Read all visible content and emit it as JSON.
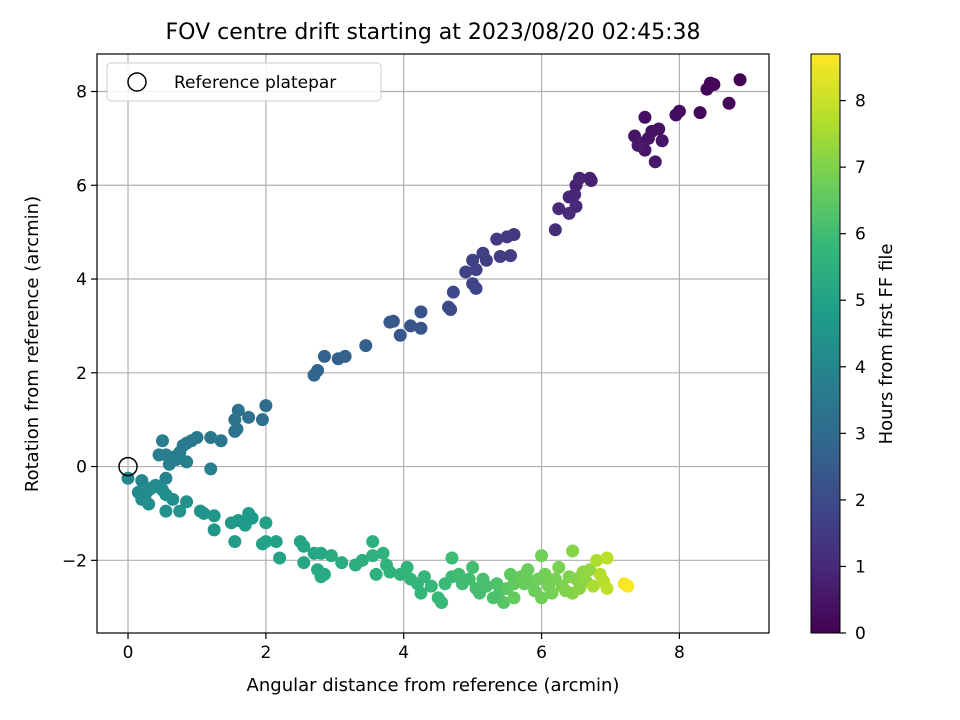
{
  "chart_data": {
    "type": "scatter",
    "title": "FOV centre drift starting at 2023/08/20 02:45:38",
    "xlabel": "Angular distance from reference (arcmin)",
    "ylabel": "Rotation from reference (arcmin)",
    "xlim": [
      -0.45,
      9.3
    ],
    "ylim": [
      -3.55,
      8.8
    ],
    "xticks": [
      "0",
      "2",
      "4",
      "6",
      "8"
    ],
    "xtick_values": [
      0,
      2,
      4,
      6,
      8
    ],
    "yticks": [
      "−2",
      "0",
      "2",
      "4",
      "6",
      "8"
    ],
    "ytick_values": [
      -2,
      0,
      2,
      4,
      6,
      8
    ],
    "grid": true,
    "legend": {
      "placement": "top-left",
      "entries": [
        {
          "label": "Reference platepar",
          "marker": "open-circle"
        }
      ]
    },
    "reference_point": {
      "x": 0,
      "y": 0
    },
    "colorbar": {
      "label": "Hours from first FF file",
      "colormap": "viridis",
      "range": [
        0,
        8.7
      ],
      "ticks": [
        "0",
        "1",
        "2",
        "3",
        "4",
        "5",
        "6",
        "7",
        "8"
      ],
      "tick_values": [
        0,
        1,
        2,
        3,
        4,
        5,
        6,
        7,
        8
      ]
    },
    "series": [
      {
        "columns": [
          "x",
          "y",
          "hours"
        ],
        "points": [
          [
            8.88,
            8.25,
            0.0
          ],
          [
            8.45,
            8.18,
            0.05
          ],
          [
            8.4,
            8.05,
            0.08
          ],
          [
            8.5,
            8.15,
            0.1
          ],
          [
            8.72,
            7.75,
            0.15
          ],
          [
            8.3,
            7.55,
            0.2
          ],
          [
            8.0,
            7.58,
            0.25
          ],
          [
            7.95,
            7.5,
            0.3
          ],
          [
            7.5,
            7.45,
            0.35
          ],
          [
            7.6,
            7.15,
            0.4
          ],
          [
            7.7,
            7.2,
            0.42
          ],
          [
            7.55,
            7.0,
            0.45
          ],
          [
            7.45,
            6.9,
            0.48
          ],
          [
            7.75,
            6.95,
            0.5
          ],
          [
            7.35,
            7.05,
            0.52
          ],
          [
            7.5,
            6.75,
            0.55
          ],
          [
            7.65,
            6.5,
            0.6
          ],
          [
            7.4,
            6.85,
            0.62
          ],
          [
            6.7,
            6.15,
            0.8
          ],
          [
            6.72,
            6.1,
            0.82
          ],
          [
            6.5,
            6.0,
            0.85
          ],
          [
            6.55,
            6.15,
            0.88
          ],
          [
            6.48,
            5.8,
            0.92
          ],
          [
            6.4,
            5.75,
            0.95
          ],
          [
            6.5,
            5.55,
            1.0
          ],
          [
            6.25,
            5.5,
            1.05
          ],
          [
            6.4,
            5.4,
            1.1
          ],
          [
            6.2,
            5.05,
            1.15
          ],
          [
            5.6,
            4.95,
            1.45
          ],
          [
            5.5,
            4.9,
            1.5
          ],
          [
            5.35,
            4.85,
            1.52
          ],
          [
            5.55,
            4.5,
            1.55
          ],
          [
            5.4,
            4.48,
            1.6
          ],
          [
            5.15,
            4.55,
            1.62
          ],
          [
            5.2,
            4.4,
            1.65
          ],
          [
            5.0,
            4.4,
            1.7
          ],
          [
            5.05,
            4.2,
            1.72
          ],
          [
            4.9,
            4.15,
            1.75
          ],
          [
            5.0,
            3.9,
            1.8
          ],
          [
            5.05,
            3.8,
            1.85
          ],
          [
            4.72,
            3.72,
            1.9
          ],
          [
            4.65,
            3.4,
            1.95
          ],
          [
            4.68,
            3.35,
            1.98
          ],
          [
            4.25,
            3.3,
            2.2
          ],
          [
            4.1,
            3.0,
            2.25
          ],
          [
            4.25,
            2.95,
            2.3
          ],
          [
            3.95,
            2.8,
            2.35
          ],
          [
            3.85,
            3.1,
            2.4
          ],
          [
            3.8,
            3.08,
            2.42
          ],
          [
            3.45,
            2.58,
            2.65
          ],
          [
            3.15,
            2.35,
            2.7
          ],
          [
            3.05,
            2.3,
            2.72
          ],
          [
            2.85,
            2.35,
            2.75
          ],
          [
            2.75,
            2.05,
            2.8
          ],
          [
            2.7,
            1.95,
            2.85
          ],
          [
            2.0,
            1.3,
            3.1
          ],
          [
            1.95,
            1.0,
            3.15
          ],
          [
            1.75,
            1.05,
            3.2
          ],
          [
            1.6,
            1.2,
            3.25
          ],
          [
            1.55,
            1.0,
            3.28
          ],
          [
            1.58,
            0.8,
            3.3
          ],
          [
            1.55,
            0.75,
            3.32
          ],
          [
            1.35,
            0.55,
            3.4
          ],
          [
            1.2,
            0.62,
            3.45
          ],
          [
            1.0,
            0.62,
            3.5
          ],
          [
            0.92,
            0.55,
            3.52
          ],
          [
            0.85,
            0.5,
            3.55
          ],
          [
            0.8,
            0.45,
            3.58
          ],
          [
            0.75,
            0.3,
            3.62
          ],
          [
            0.65,
            0.2,
            3.65
          ],
          [
            0.55,
            0.25,
            3.68
          ],
          [
            0.5,
            0.55,
            3.7
          ],
          [
            0.45,
            0.25,
            3.72
          ],
          [
            0.6,
            0.05,
            3.75
          ],
          [
            0.7,
            0.15,
            3.78
          ],
          [
            0.85,
            0.1,
            3.8
          ],
          [
            1.2,
            -0.05,
            3.82
          ],
          [
            0.55,
            -0.25,
            3.85
          ],
          [
            0.2,
            -0.3,
            4.0
          ],
          [
            0.0,
            -0.25,
            4.05
          ],
          [
            0.15,
            -0.55,
            4.1
          ],
          [
            0.25,
            -0.6,
            4.12
          ],
          [
            0.35,
            -0.45,
            4.15
          ],
          [
            0.3,
            -0.5,
            4.18
          ],
          [
            0.4,
            -0.4,
            4.2
          ],
          [
            0.5,
            -0.5,
            4.22
          ],
          [
            0.2,
            -0.7,
            4.25
          ],
          [
            0.3,
            -0.8,
            4.28
          ],
          [
            0.55,
            -0.6,
            4.3
          ],
          [
            0.65,
            -0.7,
            4.32
          ],
          [
            0.85,
            -0.75,
            4.35
          ],
          [
            0.55,
            -0.95,
            4.4
          ],
          [
            0.75,
            -0.95,
            4.42
          ],
          [
            1.05,
            -0.95,
            4.5
          ],
          [
            1.1,
            -1.0,
            4.52
          ],
          [
            1.25,
            -1.05,
            4.55
          ],
          [
            1.25,
            -1.35,
            4.6
          ],
          [
            1.5,
            -1.2,
            4.62
          ],
          [
            1.6,
            -1.15,
            4.65
          ],
          [
            1.75,
            -1.0,
            4.68
          ],
          [
            1.8,
            -1.1,
            4.7
          ],
          [
            1.7,
            -1.25,
            4.72
          ],
          [
            1.55,
            -1.6,
            4.75
          ],
          [
            2.0,
            -1.2,
            4.9
          ],
          [
            2.0,
            -1.6,
            4.95
          ],
          [
            1.95,
            -1.65,
            4.98
          ],
          [
            2.15,
            -1.6,
            5.0
          ],
          [
            2.2,
            -1.95,
            5.05
          ],
          [
            2.5,
            -1.6,
            5.1
          ],
          [
            2.55,
            -1.7,
            5.12
          ],
          [
            2.7,
            -1.85,
            5.15
          ],
          [
            2.8,
            -1.85,
            5.18
          ],
          [
            2.55,
            -2.05,
            5.2
          ],
          [
            2.75,
            -2.2,
            5.22
          ],
          [
            2.85,
            -2.3,
            5.25
          ],
          [
            2.8,
            -2.35,
            5.28
          ],
          [
            2.95,
            -1.9,
            5.3
          ],
          [
            3.1,
            -2.05,
            5.35
          ],
          [
            3.3,
            -2.1,
            5.4
          ],
          [
            3.4,
            -2.0,
            5.45
          ],
          [
            3.55,
            -1.6,
            5.5
          ],
          [
            3.55,
            -1.9,
            5.52
          ],
          [
            3.6,
            -2.3,
            5.55
          ],
          [
            3.7,
            -1.85,
            5.58
          ],
          [
            3.75,
            -2.1,
            5.6
          ],
          [
            3.8,
            -2.25,
            5.62
          ],
          [
            3.95,
            -2.3,
            5.65
          ],
          [
            4.05,
            -2.15,
            5.68
          ],
          [
            4.1,
            -2.4,
            5.7
          ],
          [
            4.2,
            -2.5,
            5.72
          ],
          [
            4.3,
            -2.35,
            5.75
          ],
          [
            4.25,
            -2.7,
            5.78
          ],
          [
            4.4,
            -2.55,
            5.8
          ],
          [
            4.5,
            -2.8,
            5.82
          ],
          [
            4.55,
            -2.9,
            5.85
          ],
          [
            4.6,
            -2.5,
            5.88
          ],
          [
            4.7,
            -2.35,
            5.9
          ],
          [
            4.7,
            -1.95,
            5.95
          ],
          [
            4.8,
            -2.3,
            5.98
          ],
          [
            4.85,
            -2.5,
            6.0
          ],
          [
            4.95,
            -2.4,
            6.02
          ],
          [
            5.0,
            -2.15,
            6.05
          ],
          [
            5.05,
            -2.6,
            6.08
          ],
          [
            5.1,
            -2.7,
            6.1
          ],
          [
            5.15,
            -2.4,
            6.12
          ],
          [
            5.2,
            -2.55,
            6.15
          ],
          [
            5.3,
            -2.8,
            6.18
          ],
          [
            5.35,
            -2.5,
            6.2
          ],
          [
            5.4,
            -2.65,
            6.22
          ],
          [
            5.45,
            -2.9,
            6.4
          ],
          [
            5.5,
            -2.6,
            6.45
          ],
          [
            5.55,
            -2.3,
            6.5
          ],
          [
            5.6,
            -2.5,
            6.55
          ],
          [
            5.6,
            -2.8,
            6.58
          ],
          [
            5.7,
            -2.35,
            6.62
          ],
          [
            5.75,
            -2.5,
            6.65
          ],
          [
            5.8,
            -2.2,
            6.68
          ],
          [
            5.85,
            -2.45,
            6.7
          ],
          [
            5.9,
            -2.65,
            6.72
          ],
          [
            5.95,
            -2.4,
            6.75
          ],
          [
            6.0,
            -2.8,
            6.78
          ],
          [
            6.0,
            -1.9,
            6.8
          ],
          [
            6.05,
            -2.3,
            6.82
          ],
          [
            6.1,
            -2.55,
            6.85
          ],
          [
            6.15,
            -2.7,
            6.88
          ],
          [
            6.2,
            -2.4,
            6.9
          ],
          [
            6.25,
            -2.15,
            6.92
          ],
          [
            6.3,
            -2.55,
            6.95
          ],
          [
            6.35,
            -2.65,
            6.98
          ],
          [
            6.4,
            -2.35,
            7.0
          ],
          [
            6.45,
            -2.7,
            7.05
          ],
          [
            6.45,
            -1.8,
            7.1
          ],
          [
            6.5,
            -2.4,
            7.12
          ],
          [
            6.55,
            -2.6,
            7.15
          ],
          [
            6.6,
            -2.25,
            7.2
          ],
          [
            6.65,
            -2.45,
            7.22
          ],
          [
            6.7,
            -2.2,
            7.25
          ],
          [
            6.75,
            -2.55,
            7.6
          ],
          [
            6.8,
            -2.0,
            7.65
          ],
          [
            6.85,
            -2.3,
            7.7
          ],
          [
            6.9,
            -2.45,
            7.75
          ],
          [
            6.95,
            -1.95,
            7.8
          ],
          [
            6.95,
            -2.6,
            7.85
          ],
          [
            7.2,
            -2.5,
            8.6
          ],
          [
            7.25,
            -2.55,
            8.65
          ]
        ]
      }
    ]
  }
}
